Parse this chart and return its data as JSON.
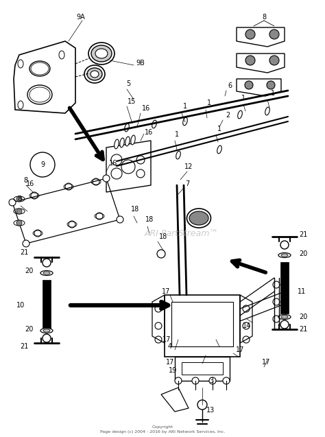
{
  "background_color": "#ffffff",
  "watermark": "ARI PartStream™",
  "watermark_color": "#aaaaaa",
  "watermark_alpha": 0.6,
  "copyright_text": "Copyright\nPage design (c) 2004 - 2016 by ARI Network Services, Inc.",
  "fig_width": 4.74,
  "fig_height": 6.37,
  "dpi": 100,
  "line_color": "#000000"
}
